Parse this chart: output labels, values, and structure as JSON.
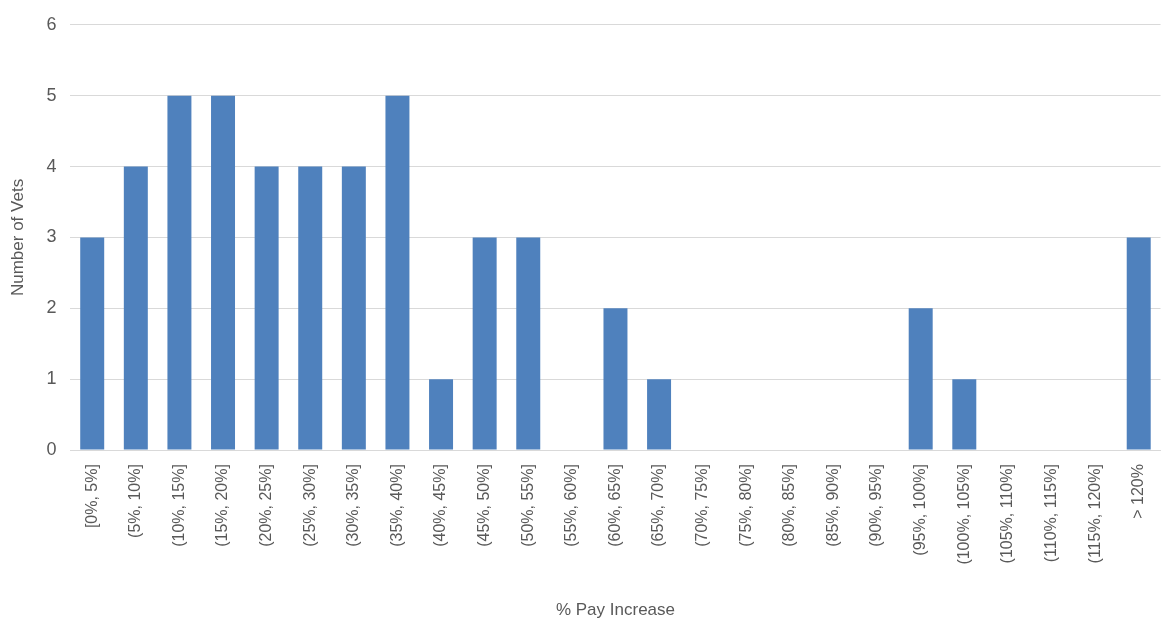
{
  "chart_data": {
    "type": "bar",
    "xlabel": "% Pay Increase",
    "ylabel": "Number of Vets",
    "categories": [
      "[0%, 5%]",
      "(5%, 10%]",
      "(10%, 15%]",
      "(15%, 20%]",
      "(20%, 25%]",
      "(25%, 30%]",
      "(30%, 35%]",
      "(35%, 40%]",
      "(40%, 45%]",
      "(45%, 50%]",
      "(50%, 55%]",
      "(55%, 60%]",
      "(60%, 65%]",
      "(65%, 70%]",
      "(70%, 75%]",
      "(75%, 80%]",
      "(80%, 85%]",
      "(85%, 90%]",
      "(90%, 95%]",
      "(95%, 100%]",
      "(100%, 105%]",
      "(105%, 110%]",
      "(110%, 115%]",
      "(115%, 120%]",
      "> 120%"
    ],
    "values": [
      3,
      4,
      5,
      5,
      4,
      4,
      4,
      5,
      1,
      3,
      3,
      0,
      2,
      1,
      0,
      0,
      0,
      0,
      0,
      2,
      1,
      0,
      0,
      0,
      3
    ],
    "color": "#4f81bd",
    "ylim": [
      0,
      6
    ],
    "yticks": [
      0,
      1,
      2,
      3,
      4,
      5,
      6
    ],
    "grid": "y",
    "legend": false
  }
}
